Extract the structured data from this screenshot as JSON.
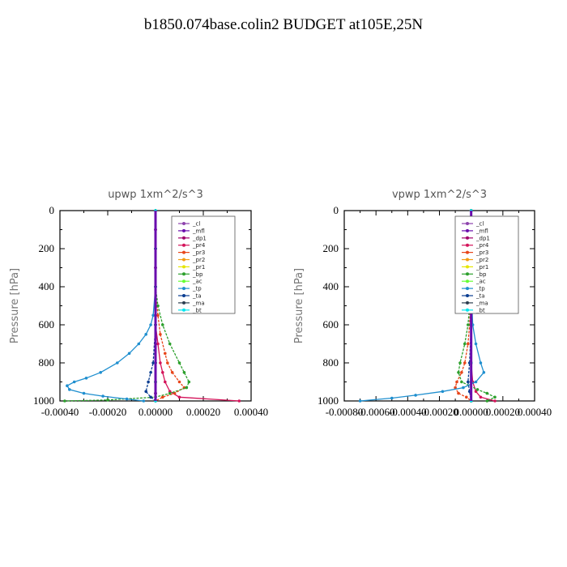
{
  "page": {
    "title": "b1850.074base.colin2  BUDGET at105E,25N"
  },
  "chart_data": [
    {
      "type": "line",
      "title": "upwp   1xm^2/s^3",
      "ylabel": "Pressure [hPa]",
      "xlim": [
        -0.0004,
        0.0004
      ],
      "ylim": [
        1000,
        0
      ],
      "xticks": [
        -0.0004,
        -0.0002,
        0.0,
        0.0002,
        0.0004
      ],
      "xtick_labels": [
        "-0.00040",
        "-0.00020",
        "0.00000",
        "0.00020",
        "0.00040"
      ],
      "yticks": [
        0,
        200,
        400,
        600,
        800,
        1000
      ],
      "ytick_labels": [
        "0",
        "200",
        "400",
        "600",
        "800",
        "1000"
      ],
      "legend_position": "upper-right",
      "series": [
        {
          "name": "_cl",
          "color": "#8e44ad",
          "p": [
            0,
            100,
            200,
            300,
            400,
            500,
            600,
            700,
            800,
            900,
            960,
            1000
          ],
          "values": [
            0,
            0,
            0,
            0,
            0,
            0,
            0,
            0,
            0,
            0,
            0,
            0
          ]
        },
        {
          "name": "_mfl",
          "color": "#6a0dad",
          "p": [
            0,
            100,
            200,
            300,
            400,
            500,
            600,
            700,
            800,
            900,
            960,
            1000
          ],
          "values": [
            0,
            0,
            0,
            0,
            0,
            0,
            0,
            0,
            0,
            0,
            0,
            0
          ]
        },
        {
          "name": "_dp1",
          "color": "#a0006a",
          "p": [
            0,
            100,
            200,
            300,
            400,
            500,
            600,
            700,
            800,
            900,
            960,
            1000
          ],
          "values": [
            0,
            0,
            0,
            0,
            0,
            0,
            0,
            0,
            0,
            0,
            0,
            0
          ]
        },
        {
          "name": "_pr4",
          "color": "#d4145a",
          "p": [
            0,
            200,
            400,
            600,
            700,
            800,
            850,
            900,
            950,
            980,
            1000
          ],
          "values": [
            0,
            0,
            0,
            0,
            1e-05,
            2e-05,
            3e-05,
            4e-05,
            6e-05,
            0.0001,
            0.00035
          ]
        },
        {
          "name": "_pr3",
          "color": "#e8451a",
          "p": [
            0,
            200,
            400,
            550,
            650,
            750,
            800,
            850,
            900,
            930,
            960,
            980,
            1000
          ],
          "values": [
            0,
            0,
            0,
            1e-05,
            2e-05,
            4e-05,
            5e-05,
            7e-05,
            0.0001,
            0.00012,
            8e-05,
            3e-05,
            0
          ]
        },
        {
          "name": "_pr2",
          "color": "#f39c12",
          "p": [
            0,
            200,
            400,
            600,
            800,
            900,
            1000
          ],
          "values": [
            0,
            0,
            0,
            0,
            0,
            0,
            0
          ]
        },
        {
          "name": "_pr1",
          "color": "#e6e600",
          "p": [
            0,
            200,
            400,
            600,
            800,
            900,
            1000
          ],
          "values": [
            0,
            0,
            0,
            0,
            0,
            0,
            0
          ]
        },
        {
          "name": "_bp",
          "color": "#2ca02c",
          "p": [
            0,
            200,
            400,
            500,
            600,
            700,
            800,
            850,
            900,
            930,
            960,
            980,
            995,
            1000
          ],
          "values": [
            0,
            0,
            0,
            1e-05,
            3e-05,
            6e-05,
            0.0001,
            0.00012,
            0.00014,
            0.00013,
            6e-05,
            0,
            -0.0002,
            -0.00038
          ]
        },
        {
          "name": "_ac",
          "color": "#66ff33",
          "p": [
            0,
            200,
            400,
            600,
            800,
            900,
            1000
          ],
          "values": [
            0,
            0,
            0,
            0,
            0,
            0,
            0
          ]
        },
        {
          "name": "_tp",
          "color": "#1f8fcf",
          "p": [
            0,
            200,
            400,
            550,
            600,
            650,
            700,
            750,
            800,
            850,
            880,
            900,
            920,
            940,
            960,
            975,
            990,
            1000
          ],
          "values": [
            0,
            0,
            0,
            -1e-05,
            -2e-05,
            -4e-05,
            -7e-05,
            -0.00011,
            -0.00016,
            -0.00023,
            -0.00029,
            -0.00034,
            -0.00037,
            -0.00036,
            -0.0003,
            -0.00022,
            -0.00012,
            -5e-05
          ]
        },
        {
          "name": "_ta",
          "color": "#0a3d91",
          "p": [
            0,
            200,
            400,
            600,
            800,
            850,
            900,
            950,
            980,
            1000
          ],
          "values": [
            0,
            0,
            0,
            0,
            -1e-05,
            -2e-05,
            -3e-05,
            -4e-05,
            -2e-05,
            0
          ]
        },
        {
          "name": "_ma",
          "color": "#2c3e50",
          "p": [
            0,
            200,
            400,
            600,
            800,
            900,
            1000
          ],
          "values": [
            0,
            0,
            0,
            0,
            0,
            0,
            0
          ]
        },
        {
          "name": "_bt",
          "color": "#00e5ee",
          "p": [
            0,
            200,
            400,
            600,
            800,
            900,
            1000
          ],
          "values": [
            0,
            0,
            0,
            0,
            0,
            0,
            0
          ]
        }
      ]
    },
    {
      "type": "line",
      "title": "vpwp   1xm^2/s^3",
      "ylabel": "Pressure [hPa]",
      "xlim": [
        -0.0008,
        0.0004
      ],
      "ylim": [
        1000,
        0
      ],
      "xticks": [
        -0.0008,
        -0.0006,
        -0.0004,
        -0.0002,
        0.0,
        0.0002,
        0.0004
      ],
      "xtick_labels": [
        "-0.00080",
        "-0.00060",
        "-0.00040",
        "-0.00020",
        "0.00000",
        "0.00020",
        "0.00040"
      ],
      "yticks": [
        0,
        200,
        400,
        600,
        800,
        1000
      ],
      "ytick_labels": [
        "0",
        "200",
        "400",
        "600",
        "800",
        "1000"
      ],
      "legend_position": "upper-right",
      "series": [
        {
          "name": "_cl",
          "color": "#8e44ad",
          "p": [
            0,
            200,
            400,
            600,
            800,
            900,
            1000
          ],
          "values": [
            0,
            0,
            0,
            0,
            0,
            0,
            0
          ]
        },
        {
          "name": "_mfl",
          "color": "#6a0dad",
          "p": [
            0,
            200,
            400,
            600,
            800,
            900,
            1000
          ],
          "values": [
            0,
            0,
            0,
            0,
            0,
            0,
            0
          ]
        },
        {
          "name": "_dp1",
          "color": "#a0006a",
          "p": [
            0,
            200,
            400,
            600,
            800,
            900,
            1000
          ],
          "values": [
            0,
            0,
            0,
            0,
            0,
            0,
            0
          ]
        },
        {
          "name": "_pr4",
          "color": "#d4145a",
          "p": [
            0,
            200,
            400,
            600,
            800,
            900,
            950,
            980,
            1000
          ],
          "values": [
            0,
            0,
            0,
            0,
            0,
            1e-05,
            3e-05,
            6e-05,
            0.00015
          ]
        },
        {
          "name": "_pr3",
          "color": "#e8451a",
          "p": [
            0,
            200,
            400,
            600,
            700,
            800,
            850,
            900,
            930,
            960,
            980,
            1000
          ],
          "values": [
            0,
            0,
            0,
            -1e-05,
            -2e-05,
            -4e-05,
            -6e-05,
            -9e-05,
            -0.0001,
            -8e-05,
            -3e-05,
            0
          ]
        },
        {
          "name": "_pr2",
          "color": "#f39c12",
          "p": [
            0,
            200,
            400,
            600,
            800,
            900,
            1000
          ],
          "values": [
            0,
            0,
            0,
            0,
            0,
            0,
            0
          ]
        },
        {
          "name": "_pr1",
          "color": "#e6e600",
          "p": [
            0,
            200,
            400,
            600,
            800,
            900,
            1000
          ],
          "values": [
            0,
            0,
            0,
            0,
            0,
            0,
            0
          ]
        },
        {
          "name": "_bp",
          "color": "#2ca02c",
          "p": [
            0,
            200,
            400,
            600,
            700,
            800,
            850,
            900,
            940,
            960,
            980,
            1000
          ],
          "values": [
            0,
            0,
            0,
            -2e-05,
            -4e-05,
            -7e-05,
            -8e-05,
            -6e-05,
            4e-05,
            0.0001,
            0.00015,
            0.0001
          ]
        },
        {
          "name": "_ac",
          "color": "#66ff33",
          "p": [
            0,
            200,
            400,
            600,
            800,
            900,
            1000
          ],
          "values": [
            0,
            0,
            0,
            0,
            0,
            0,
            0
          ]
        },
        {
          "name": "_tp",
          "color": "#1f8fcf",
          "p": [
            0,
            200,
            400,
            600,
            700,
            800,
            850,
            900,
            930,
            950,
            970,
            985,
            1000
          ],
          "values": [
            0,
            0,
            0,
            1e-05,
            3e-05,
            6e-05,
            8e-05,
            3e-05,
            -5e-05,
            -0.00018,
            -0.00035,
            -0.0005,
            -0.0007
          ]
        },
        {
          "name": "_ta",
          "color": "#0a3d91",
          "p": [
            0,
            200,
            400,
            600,
            800,
            900,
            950,
            1000
          ],
          "values": [
            0,
            0,
            0,
            0,
            -1e-05,
            -2e-05,
            -1e-05,
            0
          ]
        },
        {
          "name": "_ma",
          "color": "#2c3e50",
          "p": [
            0,
            200,
            400,
            600,
            800,
            900,
            1000
          ],
          "values": [
            0,
            0,
            0,
            0,
            0,
            0,
            0
          ]
        },
        {
          "name": "_bt",
          "color": "#00e5ee",
          "p": [
            0,
            200,
            400,
            600,
            800,
            900,
            1000
          ],
          "values": [
            0,
            0,
            0,
            0,
            0,
            0,
            0
          ]
        }
      ]
    }
  ]
}
